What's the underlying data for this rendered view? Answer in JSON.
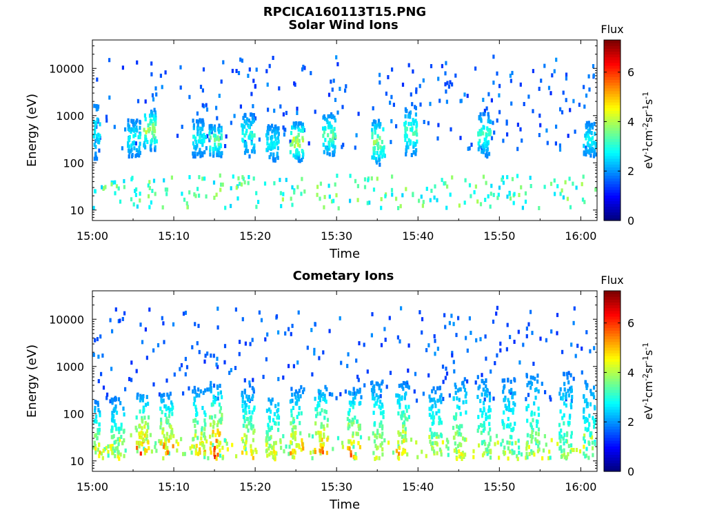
{
  "figure": {
    "title": "RPCICA160113T15.PNG"
  },
  "chart_data": [
    {
      "type": "heatmap",
      "title": "Solar Wind Ions",
      "xlabel": "Time",
      "ylabel": "Energy (eV)",
      "y_scale": "log",
      "xlim": [
        "15:00",
        "16:02"
      ],
      "ylim": [
        6,
        40000
      ],
      "x_ticks": [
        "15:00",
        "15:10",
        "15:20",
        "15:30",
        "15:40",
        "15:50",
        "16:00"
      ],
      "y_ticks": [
        "10",
        "100",
        "1000",
        "10000"
      ],
      "colorbar": {
        "label_top": "Flux",
        "unit_label": "eV-1cm-2sr-1s-1",
        "range": [
          0,
          7.3
        ],
        "ticks": [
          "0",
          "2",
          "4",
          "6"
        ],
        "colormap": "jet"
      },
      "grid": false,
      "bursts": [
        {
          "t": "15:00",
          "low": 130,
          "high": 2000,
          "peak": 3.0
        },
        {
          "t": "15:05",
          "low": 150,
          "high": 900,
          "peak": 3.2
        },
        {
          "t": "15:07",
          "low": 200,
          "high": 1500,
          "peak": 4.5
        },
        {
          "t": "15:13",
          "low": 150,
          "high": 900,
          "peak": 3.0
        },
        {
          "t": "15:15",
          "low": 150,
          "high": 700,
          "peak": 4.0
        },
        {
          "t": "15:19",
          "low": 150,
          "high": 1200,
          "peak": 3.2
        },
        {
          "t": "15:22",
          "low": 120,
          "high": 700,
          "peak": 3.0
        },
        {
          "t": "15:25",
          "low": 120,
          "high": 800,
          "peak": 4.8
        },
        {
          "t": "15:29",
          "low": 150,
          "high": 1200,
          "peak": 3.8
        },
        {
          "t": "15:35",
          "low": 100,
          "high": 900,
          "peak": 4.2
        },
        {
          "t": "15:39",
          "low": 150,
          "high": 1600,
          "peak": 3.5
        },
        {
          "t": "15:48",
          "low": 150,
          "high": 1200,
          "peak": 3.5
        },
        {
          "t": "16:01",
          "low": 150,
          "high": 800,
          "peak": 3.0
        }
      ],
      "low_band": {
        "low": 12,
        "high": 60,
        "typical": 3.2
      }
    },
    {
      "type": "heatmap",
      "title": "Cometary Ions",
      "xlabel": "Time",
      "ylabel": "Energy (eV)",
      "y_scale": "log",
      "xlim": [
        "15:00",
        "16:02"
      ],
      "ylim": [
        6,
        40000
      ],
      "x_ticks": [
        "15:00",
        "15:10",
        "15:20",
        "15:30",
        "15:40",
        "15:50",
        "16:00"
      ],
      "y_ticks": [
        "10",
        "100",
        "1000",
        "10000"
      ],
      "colorbar": {
        "label_top": "Flux",
        "unit_label": "eV-1cm-2sr-1s-1",
        "range": [
          0,
          7.3
        ],
        "ticks": [
          "0",
          "2",
          "4",
          "6"
        ],
        "colormap": "jet"
      },
      "grid": false,
      "bursts": [
        {
          "t": "15:00",
          "low": 12,
          "high": 200,
          "peak": 5.5
        },
        {
          "t": "15:03",
          "low": 12,
          "high": 250,
          "peak": 4.8
        },
        {
          "t": "15:06",
          "low": 15,
          "high": 300,
          "peak": 6.5
        },
        {
          "t": "15:09",
          "low": 15,
          "high": 300,
          "peak": 6.2
        },
        {
          "t": "15:13",
          "low": 15,
          "high": 400,
          "peak": 5.5
        },
        {
          "t": "15:15",
          "low": 12,
          "high": 500,
          "peak": 6.8
        },
        {
          "t": "15:19",
          "low": 12,
          "high": 400,
          "peak": 5.5
        },
        {
          "t": "15:22",
          "low": 12,
          "high": 300,
          "peak": 5.2
        },
        {
          "t": "15:25",
          "low": 15,
          "high": 350,
          "peak": 5.8
        },
        {
          "t": "15:28",
          "low": 15,
          "high": 450,
          "peak": 6.0
        },
        {
          "t": "15:32",
          "low": 12,
          "high": 400,
          "peak": 6.2
        },
        {
          "t": "15:35",
          "low": 12,
          "high": 600,
          "peak": 4.8
        },
        {
          "t": "15:38",
          "low": 15,
          "high": 500,
          "peak": 5.5
        },
        {
          "t": "15:42",
          "low": 15,
          "high": 400,
          "peak": 4.5
        },
        {
          "t": "15:45",
          "low": 12,
          "high": 600,
          "peak": 5.0
        },
        {
          "t": "15:48",
          "low": 15,
          "high": 700,
          "peak": 4.2
        },
        {
          "t": "15:51",
          "low": 15,
          "high": 600,
          "peak": 4.0
        },
        {
          "t": "15:54",
          "low": 15,
          "high": 800,
          "peak": 4.5
        },
        {
          "t": "15:58",
          "low": 12,
          "high": 800,
          "peak": 4.2
        },
        {
          "t": "16:01",
          "low": 12,
          "high": 700,
          "peak": 3.8
        }
      ],
      "low_band": {
        "low": 12,
        "high": 40,
        "typical": 3.8
      }
    }
  ]
}
